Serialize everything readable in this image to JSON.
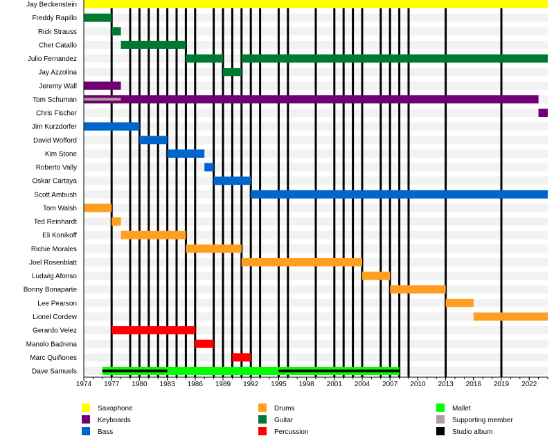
{
  "chart_data": {
    "type": "timeline",
    "title": "",
    "xlabel": "",
    "xlim": [
      1974,
      2024
    ],
    "x_ticks": [
      1974,
      1977,
      1980,
      1983,
      1986,
      1989,
      1992,
      1995,
      1998,
      2001,
      2004,
      2007,
      2010,
      2013,
      2016,
      2019,
      2022
    ],
    "grid": false,
    "legend_placement": "bottom",
    "colors": {
      "Saxophone": "#ffff00",
      "Keyboards": "#6f0073",
      "Bass": "#0066cc",
      "Drums": "#ff9f22",
      "Guitar": "#007a33",
      "Percussion": "#ff0000",
      "Mallet": "#00ff00",
      "Supporting member": "#b09d9d",
      "Studio album": "#000000"
    },
    "legend": [
      [
        "Saxophone",
        "Keyboards",
        "Bass"
      ],
      [
        "Drums",
        "Guitar",
        "Percussion"
      ],
      [
        "Mallet",
        "Supporting member",
        "Studio album"
      ]
    ],
    "members": [
      {
        "name": "Jay Beckenstein",
        "bars": [
          {
            "role": "Saxophone",
            "start": 1974,
            "end": 2024
          }
        ]
      },
      {
        "name": "Freddy Rapillo",
        "bars": [
          {
            "role": "Guitar",
            "start": 1974,
            "end": 1977
          }
        ]
      },
      {
        "name": "Rick Strauss",
        "bars": [
          {
            "role": "Guitar",
            "start": 1977,
            "end": 1978
          }
        ]
      },
      {
        "name": "Chet Catallo",
        "bars": [
          {
            "role": "Guitar",
            "start": 1978,
            "end": 1985
          }
        ]
      },
      {
        "name": "Julio Fernandez",
        "bars": [
          {
            "role": "Guitar",
            "start": 1985,
            "end": 1989
          },
          {
            "role": "Guitar",
            "start": 1991,
            "end": 2024
          }
        ]
      },
      {
        "name": "Jay Azzolina",
        "bars": [
          {
            "role": "Guitar",
            "start": 1989,
            "end": 1991
          }
        ]
      },
      {
        "name": "Jeremy Wall",
        "bars": [
          {
            "role": "Keyboards",
            "start": 1974,
            "end": 1978
          }
        ]
      },
      {
        "name": "Tom Schuman",
        "bars": [
          {
            "role": "Keyboards",
            "start": 1974,
            "end": 2023
          }
        ],
        "overlays": [
          {
            "role": "Supporting member",
            "start": 1974,
            "end": 1978
          }
        ]
      },
      {
        "name": "Chris Fischer",
        "bars": [
          {
            "role": "Keyboards",
            "start": 2023,
            "end": 2024
          }
        ]
      },
      {
        "name": "Jim Kurzdorfer",
        "bars": [
          {
            "role": "Bass",
            "start": 1974,
            "end": 1980
          }
        ]
      },
      {
        "name": "David Wofford",
        "bars": [
          {
            "role": "Bass",
            "start": 1980,
            "end": 1983
          }
        ]
      },
      {
        "name": "Kim Stone",
        "bars": [
          {
            "role": "Bass",
            "start": 1983,
            "end": 1987
          }
        ]
      },
      {
        "name": "Roberto Vally",
        "bars": [
          {
            "role": "Bass",
            "start": 1987,
            "end": 1988
          }
        ]
      },
      {
        "name": "Oskar Cartaya",
        "bars": [
          {
            "role": "Bass",
            "start": 1988,
            "end": 1992
          }
        ]
      },
      {
        "name": "Scott Ambush",
        "bars": [
          {
            "role": "Bass",
            "start": 1992,
            "end": 2024
          }
        ]
      },
      {
        "name": "Tom Walsh",
        "bars": [
          {
            "role": "Drums",
            "start": 1974,
            "end": 1977
          }
        ]
      },
      {
        "name": "Ted Reinhardt",
        "bars": [
          {
            "role": "Drums",
            "start": 1977,
            "end": 1978
          }
        ]
      },
      {
        "name": "Eli Konikoff",
        "bars": [
          {
            "role": "Drums",
            "start": 1978,
            "end": 1985
          }
        ]
      },
      {
        "name": "Richie Morales",
        "bars": [
          {
            "role": "Drums",
            "start": 1985,
            "end": 1991
          }
        ]
      },
      {
        "name": "Joel Rosenblatt",
        "bars": [
          {
            "role": "Drums",
            "start": 1991,
            "end": 2004
          }
        ]
      },
      {
        "name": "Ludwig Afonso",
        "bars": [
          {
            "role": "Drums",
            "start": 2004,
            "end": 2007
          }
        ]
      },
      {
        "name": "Bonny Bonaparte",
        "bars": [
          {
            "role": "Drums",
            "start": 2007,
            "end": 2013
          }
        ]
      },
      {
        "name": "Lee Pearson",
        "bars": [
          {
            "role": "Drums",
            "start": 2013,
            "end": 2016
          }
        ]
      },
      {
        "name": "Lionel Cordew",
        "bars": [
          {
            "role": "Drums",
            "start": 2016,
            "end": 2024
          }
        ]
      },
      {
        "name": "Gerardo Velez",
        "bars": [
          {
            "role": "Percussion",
            "start": 1977,
            "end": 1986
          }
        ]
      },
      {
        "name": "Manolo Badrena",
        "bars": [
          {
            "role": "Percussion",
            "start": 1986,
            "end": 1988
          }
        ]
      },
      {
        "name": "Marc Quiñones",
        "bars": [
          {
            "role": "Percussion",
            "start": 1990,
            "end": 1992
          }
        ]
      },
      {
        "name": "Dave Samuels",
        "bars": [
          {
            "role": "Mallet",
            "start": 1976,
            "end": 2008
          }
        ],
        "overlays": [
          {
            "color": "#000000",
            "start": 1976,
            "end": 1983
          },
          {
            "color": "#000000",
            "start": 1995,
            "end": 2008
          }
        ]
      }
    ],
    "studio_albums": [
      1977,
      1979,
      1980,
      1981,
      1982,
      1983,
      1984,
      1985,
      1986,
      1988,
      1989,
      1990,
      1991,
      1992,
      1993,
      1995,
      1996,
      1999,
      2001,
      2002,
      2003,
      2004,
      2006,
      2007,
      2008,
      2009,
      2013,
      2019
    ]
  }
}
